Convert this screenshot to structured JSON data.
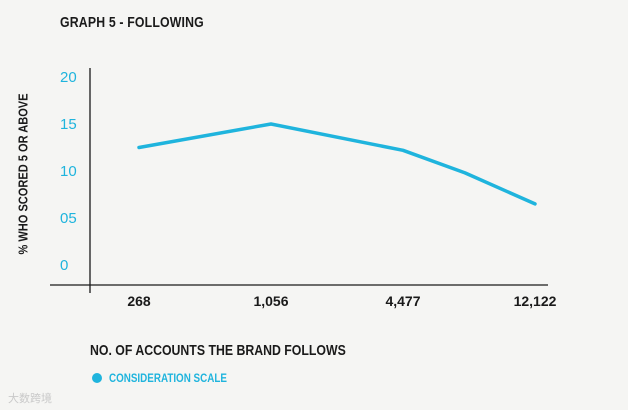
{
  "chart_data": {
    "type": "line",
    "title": "GRAPH 5 - FOLLOWING",
    "xlabel": "NO. OF ACCOUNTS THE BRAND FOLLOWS",
    "ylabel": "% WHO SCORED 5 OR ABOVE",
    "categories": [
      "268",
      "1,056",
      "4,477",
      "",
      "12,122"
    ],
    "y_ticks": [
      "20",
      "15",
      "10",
      "05",
      "0"
    ],
    "ylim": [
      0,
      20
    ],
    "series": [
      {
        "name": "CONSIDERATION SCALE",
        "color": "#1fb4dd",
        "values": [
          12.5,
          15,
          12.2,
          9.8,
          6.5
        ]
      }
    ],
    "legend_position": "bottom-left",
    "grid": false
  },
  "watermark": "大数跨境"
}
